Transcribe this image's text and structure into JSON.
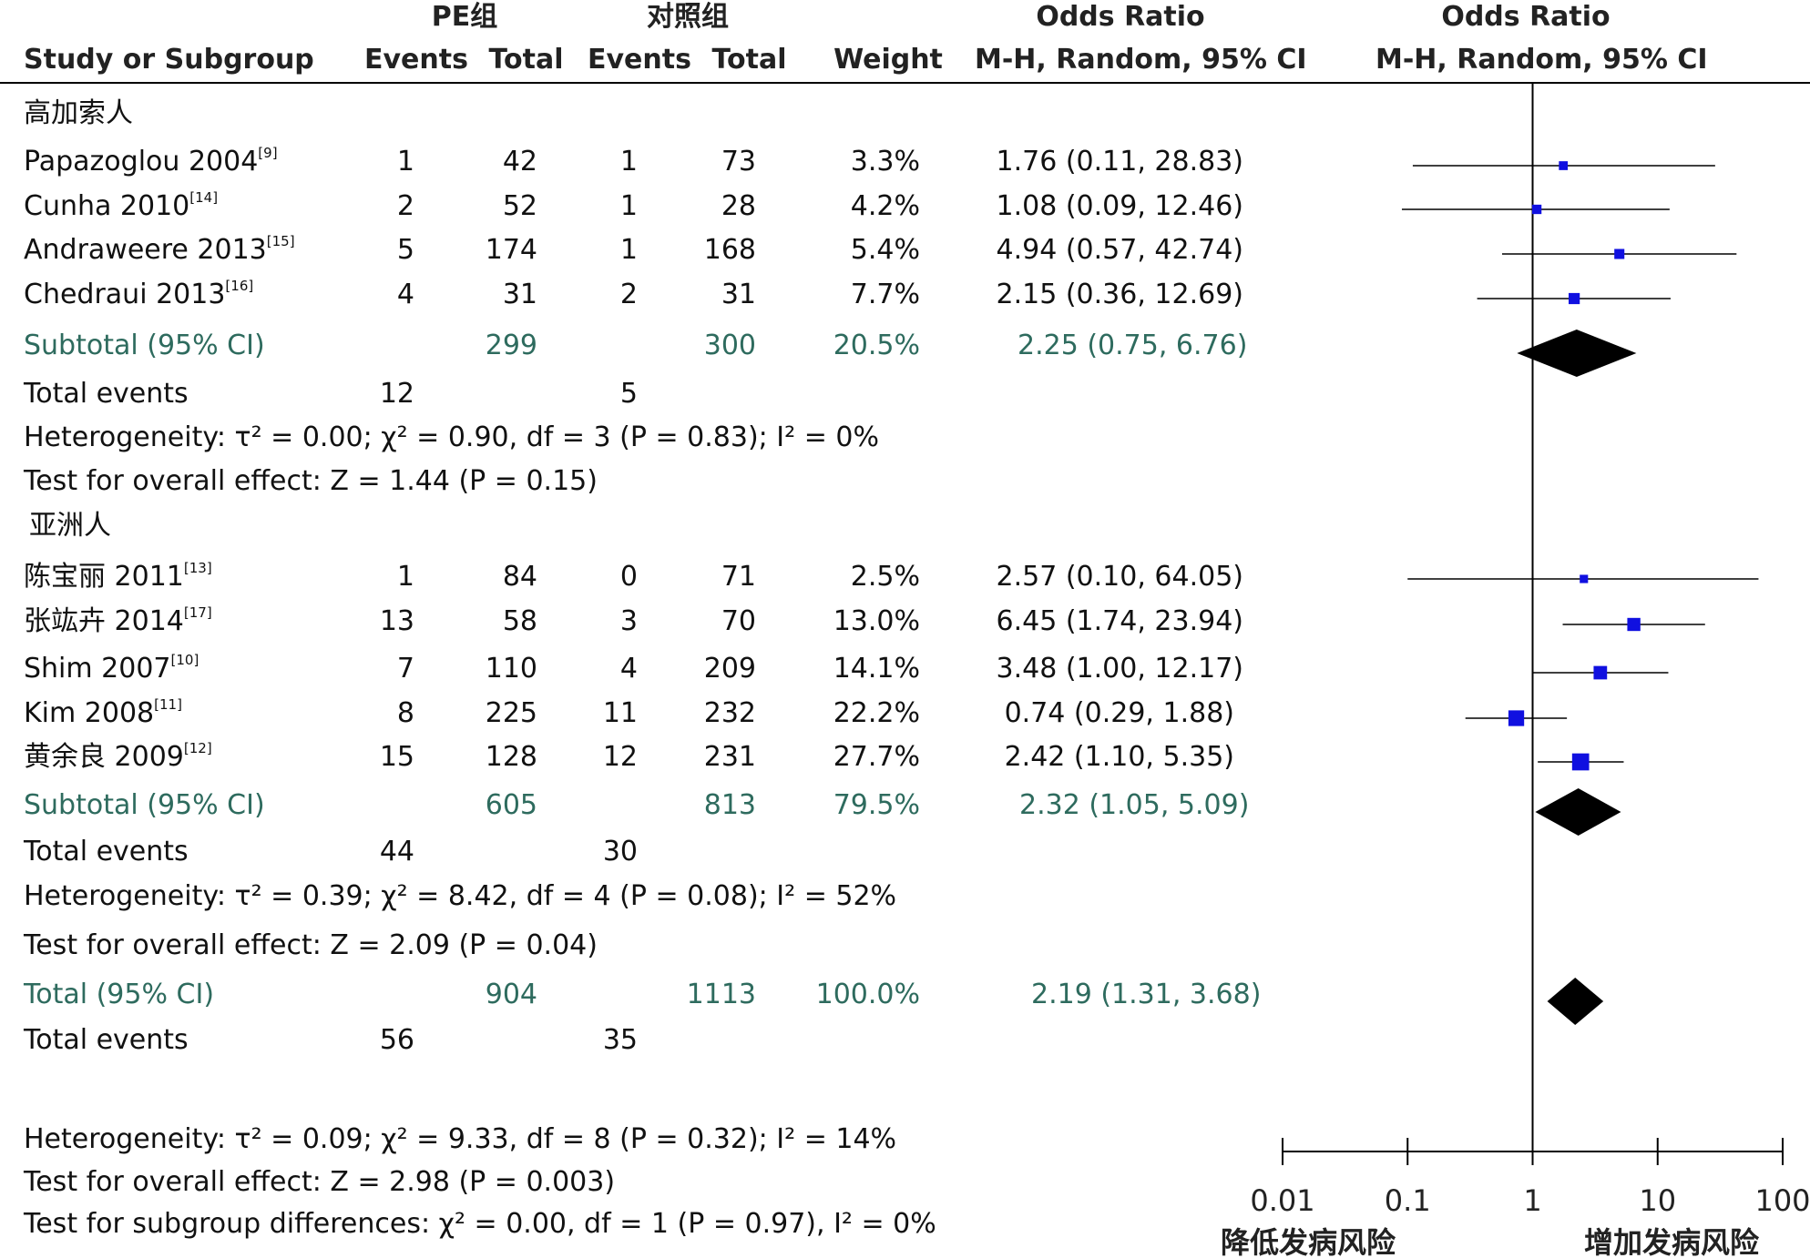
{
  "headers": {
    "pe_group": "PE组",
    "control_group": "对照组",
    "odds_ratio_left": "Odds Ratio",
    "odds_ratio_right": "Odds Ratio",
    "study": "Study or Subgroup",
    "events1": "Events",
    "total1": "Total",
    "events2": "Events",
    "total2": "Total",
    "weight": "Weight",
    "method_left": "M-H, Random, 95% CI",
    "method_right": "M-H, Random, 95% CI"
  },
  "groups": [
    {
      "name": "高加索人",
      "studies": [
        {
          "label": "Papazoglou 2004",
          "ref": "[9]",
          "e1": "1",
          "t1": "42",
          "e2": "1",
          "t2": "73",
          "weight": "3.3%",
          "ci_text": "1.76 (0.11, 28.83)"
        },
        {
          "label": "Cunha 2010",
          "ref": "[14]",
          "e1": "2",
          "t1": "52",
          "e2": "1",
          "t2": "28",
          "weight": "4.2%",
          "ci_text": "1.08 (0.09, 12.46)"
        },
        {
          "label": "Andraweere 2013",
          "ref": "[15]",
          "e1": "5",
          "t1": "174",
          "e2": "1",
          "t2": "168",
          "weight": "5.4%",
          "ci_text": "4.94 (0.57, 42.74)"
        },
        {
          "label": "Chedraui 2013",
          "ref": "[16]",
          "e1": "4",
          "t1": "31",
          "e2": "2",
          "t2": "31",
          "weight": "7.7%",
          "ci_text": "2.15 (0.36, 12.69)"
        }
      ],
      "subtotal": {
        "label": "Subtotal (95% CI)",
        "t1": "299",
        "t2": "300",
        "weight": "20.5%",
        "ci_text": "2.25 (0.75, 6.76)"
      },
      "events": {
        "label": "Total events",
        "e1": "12",
        "e2": "5"
      },
      "heterogeneity": "Heterogeneity: τ² = 0.00; χ² = 0.90, df = 3 (P = 0.83); I² = 0%",
      "overall": "Test for overall effect: Z = 1.44 (P = 0.15)"
    },
    {
      "name": "亚洲人",
      "studies": [
        {
          "label": "陈宝丽 2011",
          "ref": "[13]",
          "e1": "1",
          "t1": "84",
          "e2": "0",
          "t2": "71",
          "weight": "2.5%",
          "ci_text": "2.57 (0.10, 64.05)"
        },
        {
          "label": "张竑卉 2014",
          "ref": "[17]",
          "e1": "13",
          "t1": "58",
          "e2": "3",
          "t2": "70",
          "weight": "13.0%",
          "ci_text": "6.45 (1.74, 23.94)"
        },
        {
          "label": "Shim 2007",
          "ref": "[10]",
          "e1": "7",
          "t1": "110",
          "e2": "4",
          "t2": "209",
          "weight": "14.1%",
          "ci_text": "3.48 (1.00, 12.17)"
        },
        {
          "label": "Kim 2008",
          "ref": "[11]",
          "e1": "8",
          "t1": "225",
          "e2": "11",
          "t2": "232",
          "weight": "22.2%",
          "ci_text": "0.74 (0.29, 1.88)"
        },
        {
          "label": "黄余良 2009",
          "ref": "[12]",
          "e1": "15",
          "t1": "128",
          "e2": "12",
          "t2": "231",
          "weight": "27.7%",
          "ci_text": "2.42 (1.10, 5.35)"
        }
      ],
      "subtotal": {
        "label": "Subtotal (95% CI)",
        "t1": "605",
        "t2": "813",
        "weight": "79.5%",
        "ci_text": "2.32 (1.05, 5.09)"
      },
      "events": {
        "label": "Total events",
        "e1": "44",
        "e2": "30"
      },
      "heterogeneity": "Heterogeneity: τ² = 0.39; χ² = 8.42, df = 4 (P = 0.08); I² = 52%",
      "overall": "Test for overall effect: Z = 2.09 (P = 0.04)"
    }
  ],
  "total": {
    "label": "Total (95% CI)",
    "t1": "904",
    "t2": "1113",
    "weight": "100.0%",
    "ci_text": "2.19 (1.31, 3.68)"
  },
  "total_events": {
    "label": "Total events",
    "e1": "56",
    "e2": "35"
  },
  "footer": {
    "heterogeneity": "Heterogeneity: τ² = 0.09; χ² = 9.33, df = 8 (P = 0.32); I² = 14%",
    "overall": "Test for overall effect: Z = 2.98 (P = 0.003)",
    "subgroup": "Test for subgroup differences: χ² = 0.00, df = 1 (P = 0.97), I² = 0%"
  },
  "axis": {
    "ticks": [
      "0.01",
      "0.1",
      "1",
      "10",
      "100"
    ],
    "left_label": "降低发病风险",
    "right_label": "增加发病风险"
  },
  "chart_data": {
    "type": "scatter",
    "xscale": "log",
    "xlim": [
      0.01,
      100
    ],
    "reference_line": 1,
    "colors": {
      "study_marker": "#1010e0",
      "summary_diamond": "#000000"
    },
    "series": [
      {
        "values": [
          {
            "study": "Papazoglou 2004",
            "or": 1.76,
            "lower": 0.11,
            "upper": 28.83,
            "weight": 3.3
          },
          {
            "study": "Cunha 2010",
            "or": 1.08,
            "lower": 0.09,
            "upper": 12.46,
            "weight": 4.2
          },
          {
            "study": "Andraweere 2013",
            "or": 4.94,
            "lower": 0.57,
            "upper": 42.74,
            "weight": 5.4
          },
          {
            "study": "Chedraui 2013",
            "or": 2.15,
            "lower": 0.36,
            "upper": 12.69,
            "weight": 7.7
          },
          {
            "study": "Subtotal (95% CI)",
            "or": 2.25,
            "lower": 0.75,
            "upper": 6.76,
            "summary": true
          },
          {
            "study": "陈宝丽 2011",
            "or": 2.57,
            "lower": 0.1,
            "upper": 64.05,
            "weight": 2.5
          },
          {
            "study": "张竑卉 2014",
            "or": 6.45,
            "lower": 1.74,
            "upper": 23.94,
            "weight": 13.0
          },
          {
            "study": "Shim 2007",
            "or": 3.48,
            "lower": 1.0,
            "upper": 12.17,
            "weight": 14.1
          },
          {
            "study": "Kim 2008",
            "or": 0.74,
            "lower": 0.29,
            "upper": 1.88,
            "weight": 22.2
          },
          {
            "study": "黄余良 2009",
            "or": 2.42,
            "lower": 1.1,
            "upper": 5.35,
            "weight": 27.7
          },
          {
            "study": "Subtotal (95% CI)",
            "or": 2.32,
            "lower": 1.05,
            "upper": 5.09,
            "summary": true
          },
          {
            "study": "Total (95% CI)",
            "or": 2.19,
            "lower": 1.31,
            "upper": 3.68,
            "summary": true
          }
        ]
      }
    ]
  }
}
